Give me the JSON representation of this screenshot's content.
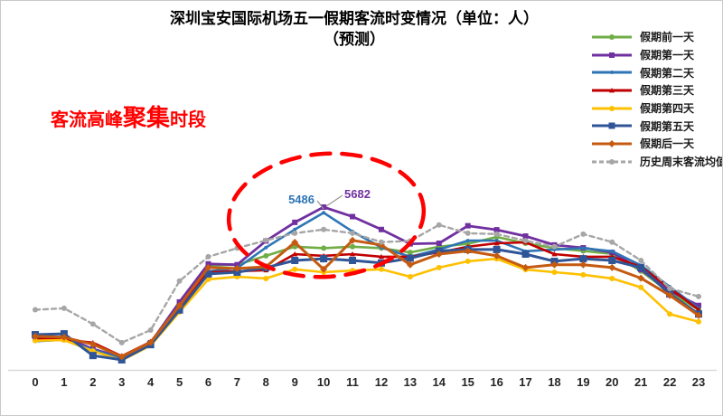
{
  "title": {
    "line1": "深圳宝安国际机场五一假期客流时变情况（单位：人）",
    "line2": "（预测）"
  },
  "annotations": {
    "peak_text": {
      "prefix": "客流高峰",
      "emphasis": "聚集",
      "suffix": "时段",
      "color": "#ff0000"
    },
    "peak_labels": [
      {
        "text": "5486",
        "color": "#2E75B6",
        "series": "假期第二天",
        "hour": 10
      },
      {
        "text": "5682",
        "color": "#7030A0",
        "series": "假期第一天",
        "hour": 10
      }
    ],
    "peak_circle": {
      "style": "red-dashed-ellipse",
      "hours_covered": "7-13"
    }
  },
  "chart_data": {
    "type": "line",
    "title": "深圳宝安国际机场五一假期客流时变情况（单位：人）（预测）",
    "xlabel": "",
    "ylabel": "",
    "x": [
      "0",
      "1",
      "2",
      "3",
      "4",
      "5",
      "6",
      "7",
      "8",
      "9",
      "10",
      "11",
      "12",
      "13",
      "14",
      "15",
      "16",
      "17",
      "18",
      "19",
      "20",
      "21",
      "22",
      "23"
    ],
    "ylim": [
      0,
      6000
    ],
    "grid": false,
    "legend_position": "right",
    "series": [
      {
        "name": "假期前一天",
        "color": "#70AD47",
        "marker": "circle",
        "marker_size": 6,
        "width": 2.6,
        "dashed": false,
        "values": [
          1050,
          1100,
          730,
          420,
          920,
          2310,
          3630,
          3670,
          3980,
          4300,
          4250,
          4300,
          4250,
          4100,
          4300,
          4400,
          4640,
          4420,
          4250,
          4150,
          4050,
          3450,
          2700,
          2100
        ]
      },
      {
        "name": "假期第一天",
        "color": "#7030A0",
        "marker": "square",
        "marker_size": 6,
        "width": 2.8,
        "dashed": false,
        "values": [
          1100,
          1150,
          730,
          440,
          950,
          2370,
          3700,
          3670,
          4500,
          5150,
          5682,
          5350,
          4900,
          4400,
          4420,
          5030,
          4890,
          4670,
          4360,
          4260,
          4100,
          3500,
          2750,
          2250
        ]
      },
      {
        "name": "假期第二天",
        "color": "#2E75B6",
        "marker": "dot",
        "marker_size": 4,
        "width": 2.6,
        "dashed": false,
        "values": [
          1000,
          1050,
          700,
          400,
          900,
          2150,
          3440,
          3550,
          4270,
          4900,
          5486,
          4830,
          4270,
          3950,
          4200,
          4510,
          4510,
          4140,
          4200,
          4250,
          4140,
          3650,
          2900,
          2150
        ]
      },
      {
        "name": "假期第三天",
        "color": "#C00000",
        "marker": "triangle",
        "marker_size": 6,
        "width": 2.6,
        "dashed": false,
        "values": [
          1080,
          1060,
          950,
          480,
          980,
          2210,
          3410,
          3440,
          3480,
          4040,
          3980,
          4040,
          3950,
          3950,
          4100,
          4300,
          4420,
          4450,
          4040,
          3950,
          3950,
          3600,
          2850,
          2100
        ]
      },
      {
        "name": "假期第四天",
        "color": "#FFC000",
        "marker": "circle",
        "marker_size": 6,
        "width": 2.6,
        "dashed": false,
        "values": [
          1020,
          1040,
          660,
          330,
          850,
          2020,
          3160,
          3250,
          3190,
          3510,
          3410,
          3470,
          3510,
          3250,
          3570,
          3790,
          3880,
          3500,
          3410,
          3320,
          3190,
          2880,
          1950,
          1680
        ]
      },
      {
        "name": "假期第五天",
        "color": "#2F5597",
        "marker": "square",
        "marker_size": 8,
        "width": 3,
        "dashed": false,
        "values": [
          1230,
          1260,
          500,
          350,
          880,
          2090,
          3350,
          3410,
          3570,
          3820,
          3880,
          3820,
          3730,
          3900,
          4150,
          4200,
          4200,
          4040,
          3790,
          3880,
          3820,
          3570,
          2650,
          1950
        ]
      },
      {
        "name": "假期后一天",
        "color": "#C55A11",
        "marker": "diamond",
        "marker_size": 7,
        "width": 3,
        "dashed": false,
        "values": [
          1170,
          1140,
          890,
          460,
          960,
          2240,
          3570,
          3540,
          3600,
          4450,
          3510,
          4520,
          4360,
          3670,
          4040,
          4150,
          3980,
          3570,
          3670,
          3670,
          3570,
          3200,
          2600,
          1900
        ]
      },
      {
        "name": "历史周末客流均值",
        "color": "#A6A6A6",
        "marker": "circle",
        "marker_size": 6,
        "width": 2.4,
        "dashed": true,
        "values": [
          2100,
          2150,
          1600,
          950,
          1390,
          3100,
          3950,
          4250,
          4520,
          4770,
          4900,
          4770,
          4460,
          4500,
          5060,
          4770,
          4740,
          4510,
          4300,
          4740,
          4460,
          3820,
          2840,
          2560
        ]
      }
    ]
  }
}
